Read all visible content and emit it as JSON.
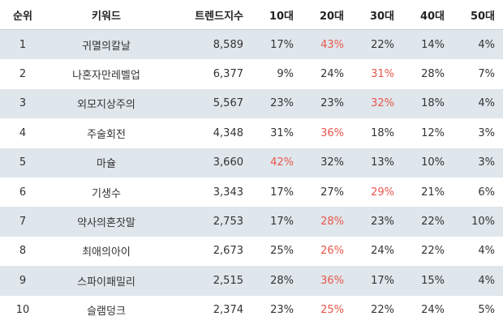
{
  "accent_color": "#e8564a",
  "headers": {
    "rank": "순위",
    "keyword": "키워드",
    "trend": "트렌드지수",
    "age10": "10대",
    "age20": "20대",
    "age30": "30대",
    "age40": "40대",
    "age50": "50대"
  },
  "rows": [
    {
      "rank": "1",
      "keyword": "귀멸의칼날",
      "trend": "8,589",
      "age10": "17%",
      "age20": "43%",
      "age30": "22%",
      "age40": "14%",
      "age50": "4%",
      "highlight": "age20"
    },
    {
      "rank": "2",
      "keyword": "나혼자만레벨업",
      "trend": "6,377",
      "age10": "9%",
      "age20": "24%",
      "age30": "31%",
      "age40": "28%",
      "age50": "7%",
      "highlight": "age30"
    },
    {
      "rank": "3",
      "keyword": "외모지상주의",
      "trend": "5,567",
      "age10": "23%",
      "age20": "23%",
      "age30": "32%",
      "age40": "18%",
      "age50": "4%",
      "highlight": "age30"
    },
    {
      "rank": "4",
      "keyword": "주술회전",
      "trend": "4,348",
      "age10": "31%",
      "age20": "36%",
      "age30": "18%",
      "age40": "12%",
      "age50": "3%",
      "highlight": "age20"
    },
    {
      "rank": "5",
      "keyword": "마슐",
      "trend": "3,660",
      "age10": "42%",
      "age20": "32%",
      "age30": "13%",
      "age40": "10%",
      "age50": "3%",
      "highlight": "age10"
    },
    {
      "rank": "6",
      "keyword": "기생수",
      "trend": "3,343",
      "age10": "17%",
      "age20": "27%",
      "age30": "29%",
      "age40": "21%",
      "age50": "6%",
      "highlight": "age30"
    },
    {
      "rank": "7",
      "keyword": "약사의혼잣말",
      "trend": "2,753",
      "age10": "17%",
      "age20": "28%",
      "age30": "23%",
      "age40": "22%",
      "age50": "10%",
      "highlight": "age20"
    },
    {
      "rank": "8",
      "keyword": "최애의아이",
      "trend": "2,673",
      "age10": "25%",
      "age20": "26%",
      "age30": "24%",
      "age40": "22%",
      "age50": "4%",
      "highlight": "age20"
    },
    {
      "rank": "9",
      "keyword": "스파이패밀리",
      "trend": "2,515",
      "age10": "28%",
      "age20": "36%",
      "age30": "17%",
      "age40": "15%",
      "age50": "4%",
      "highlight": "age20"
    },
    {
      "rank": "10",
      "keyword": "슬램덩크",
      "trend": "2,374",
      "age10": "23%",
      "age20": "25%",
      "age30": "22%",
      "age40": "24%",
      "age50": "5%",
      "highlight": "age20"
    }
  ]
}
